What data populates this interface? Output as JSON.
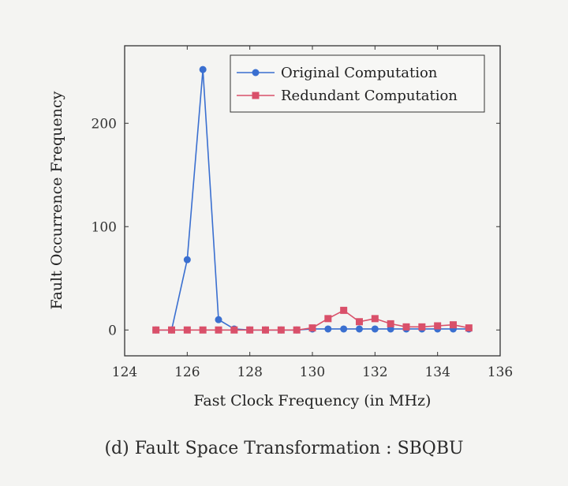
{
  "chart_data": {
    "type": "line",
    "xlabel": "Fast Clock Frequency (in MHz)",
    "ylabel": "Fault Occurrence Frequency",
    "xlim": [
      124,
      136
    ],
    "ylim": [
      -25,
      275
    ],
    "xticks": [
      124,
      126,
      128,
      130,
      132,
      134,
      136
    ],
    "yticks": [
      0,
      100,
      200
    ],
    "grid": false,
    "legend_position": "top-right",
    "series": [
      {
        "name": "Original Computation",
        "color": "#3a6fd0",
        "marker": "circle",
        "x": [
          125,
          125.5,
          126,
          126.5,
          127,
          127.5,
          128,
          128.5,
          129,
          129.5,
          130,
          130.5,
          131,
          131.5,
          132,
          132.5,
          133,
          133.5,
          134,
          134.5,
          135
        ],
        "y": [
          0,
          0,
          68,
          252,
          10,
          1,
          0,
          0,
          0,
          0,
          1,
          1,
          1,
          1,
          1,
          1,
          1,
          1,
          1,
          1,
          1
        ]
      },
      {
        "name": "Redundant Computation",
        "color": "#d9506a",
        "marker": "square",
        "x": [
          125,
          125.5,
          126,
          126.5,
          127,
          127.5,
          128,
          128.5,
          129,
          129.5,
          130,
          130.5,
          131,
          131.5,
          132,
          132.5,
          133,
          133.5,
          134,
          134.5,
          135
        ],
        "y": [
          0,
          0,
          0,
          0,
          0,
          0,
          0,
          0,
          0,
          0,
          2,
          11,
          19,
          8,
          11,
          6,
          3,
          3,
          4,
          5,
          2
        ]
      }
    ]
  },
  "caption": "(d) Fault Space Transformation : SBQBU"
}
